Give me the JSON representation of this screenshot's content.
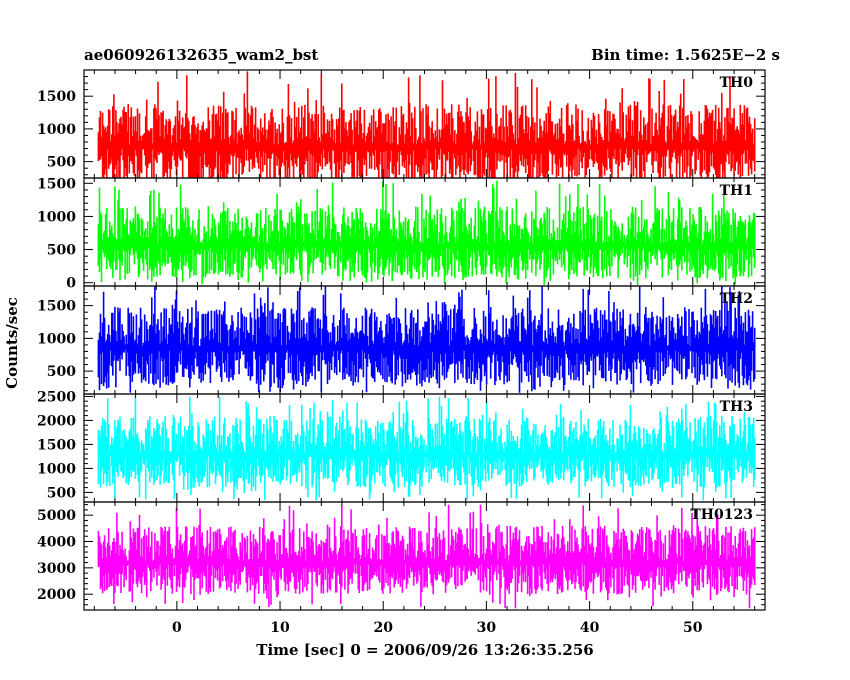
{
  "header": {
    "title": "ae060926132635_wam2_bst",
    "bin_time": "Bin time: 1.5625E−2 s"
  },
  "chart_data": {
    "type": "line",
    "xlabel": "Time [sec] 0 = 2006/09/26 13:26:35.256",
    "ylabel": "Counts/sec",
    "xlim": [
      -9,
      57
    ],
    "data_x_range": [
      -7.6,
      56.0
    ],
    "x_ticks": [
      0,
      10,
      20,
      30,
      40,
      50
    ],
    "x_tick_labels": [
      "0",
      "10",
      "20",
      "30",
      "40",
      "50"
    ],
    "panels": [
      {
        "name": "TH0",
        "color": "#ff0000",
        "ylim": [
          250,
          1900
        ],
        "yticks": [
          500,
          1000,
          1500
        ],
        "ytick_labels": [
          "500",
          "1000",
          "1500"
        ],
        "typical_range": [
          150,
          1380
        ],
        "mean": 760,
        "peak": 1900
      },
      {
        "name": "TH1",
        "color": "#00ff00",
        "ylim": [
          -50,
          1580
        ],
        "yticks": [
          0,
          500,
          1000,
          1500
        ],
        "ytick_labels": [
          "0",
          "500",
          "1000",
          "1500"
        ],
        "typical_range": [
          60,
          1150
        ],
        "mean": 590,
        "peak": 1550
      },
      {
        "name": "TH2",
        "color": "#0000ff",
        "ylim": [
          150,
          1800
        ],
        "yticks": [
          500,
          1000,
          1500
        ],
        "ytick_labels": [
          "500",
          "1000",
          "1500"
        ],
        "typical_range": [
          280,
          1480
        ],
        "mean": 880,
        "peak": 1800
      },
      {
        "name": "TH3",
        "color": "#00ffff",
        "ylim": [
          300,
          2550
        ],
        "yticks": [
          500,
          1000,
          1500,
          2000,
          2500
        ],
        "ytick_labels": [
          "500",
          "1000",
          "1500",
          "2000",
          "2500"
        ],
        "typical_range": [
          600,
          2100
        ],
        "mean": 1330,
        "peak": 2500
      },
      {
        "name": "TH0123",
        "color": "#ff00ff",
        "ylim": [
          1400,
          5500
        ],
        "yticks": [
          2000,
          3000,
          4000,
          5000
        ],
        "ytick_labels": [
          "2000",
          "3000",
          "4000",
          "5000"
        ],
        "typical_range": [
          2000,
          4600
        ],
        "mean": 3270,
        "peak": 5400
      }
    ]
  }
}
